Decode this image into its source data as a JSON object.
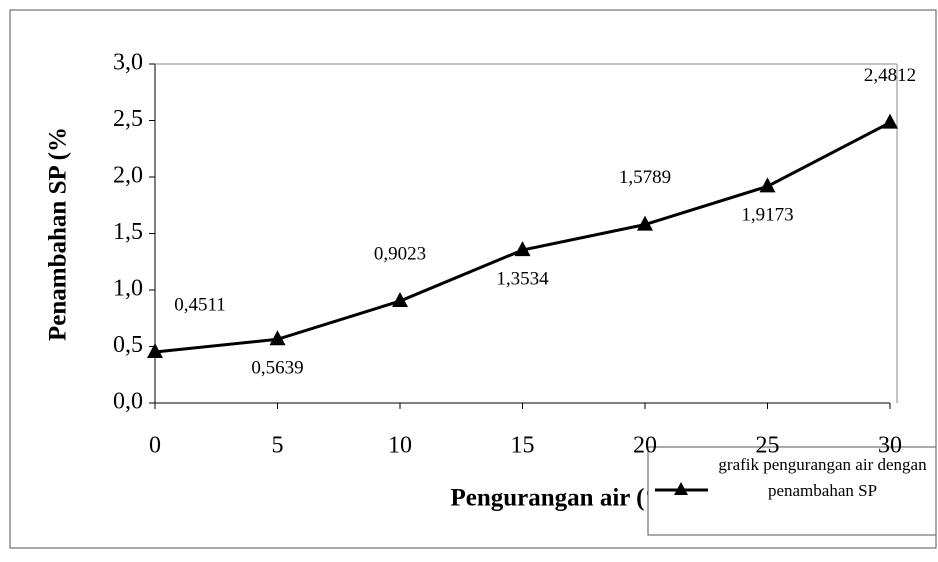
{
  "chart_data": {
    "type": "line",
    "x_label": "Pengurangan air (%",
    "y_label": "Penambahan SP (%",
    "x": [
      0,
      5,
      10,
      15,
      20,
      25,
      30
    ],
    "series": [
      {
        "name": "grafik pengurangan air dengan penambahan SP",
        "color": "#000000",
        "values": [
          0.4511,
          0.5639,
          0.9023,
          1.3534,
          1.5789,
          1.9173,
          2.4812
        ],
        "value_labels": [
          "0,4511",
          "0,5639",
          "0,9023",
          "1,3534",
          "1,5789",
          "1,9173",
          "2,4812"
        ]
      }
    ],
    "xlim": [
      0,
      30
    ],
    "xticks": [
      0,
      5,
      10,
      15,
      20,
      25,
      30
    ],
    "ylim": [
      0,
      3
    ],
    "yticks": [
      {
        "value": 0,
        "label": "0,0"
      },
      {
        "value": 0.5,
        "label": "0,5"
      },
      {
        "value": 1,
        "label": "1,0"
      },
      {
        "value": 1.5,
        "label": "1,5"
      },
      {
        "value": 2,
        "label": "2,0"
      },
      {
        "value": 2.5,
        "label": "2,5"
      },
      {
        "value": 3,
        "label": "3,0"
      }
    ],
    "grid": false
  }
}
